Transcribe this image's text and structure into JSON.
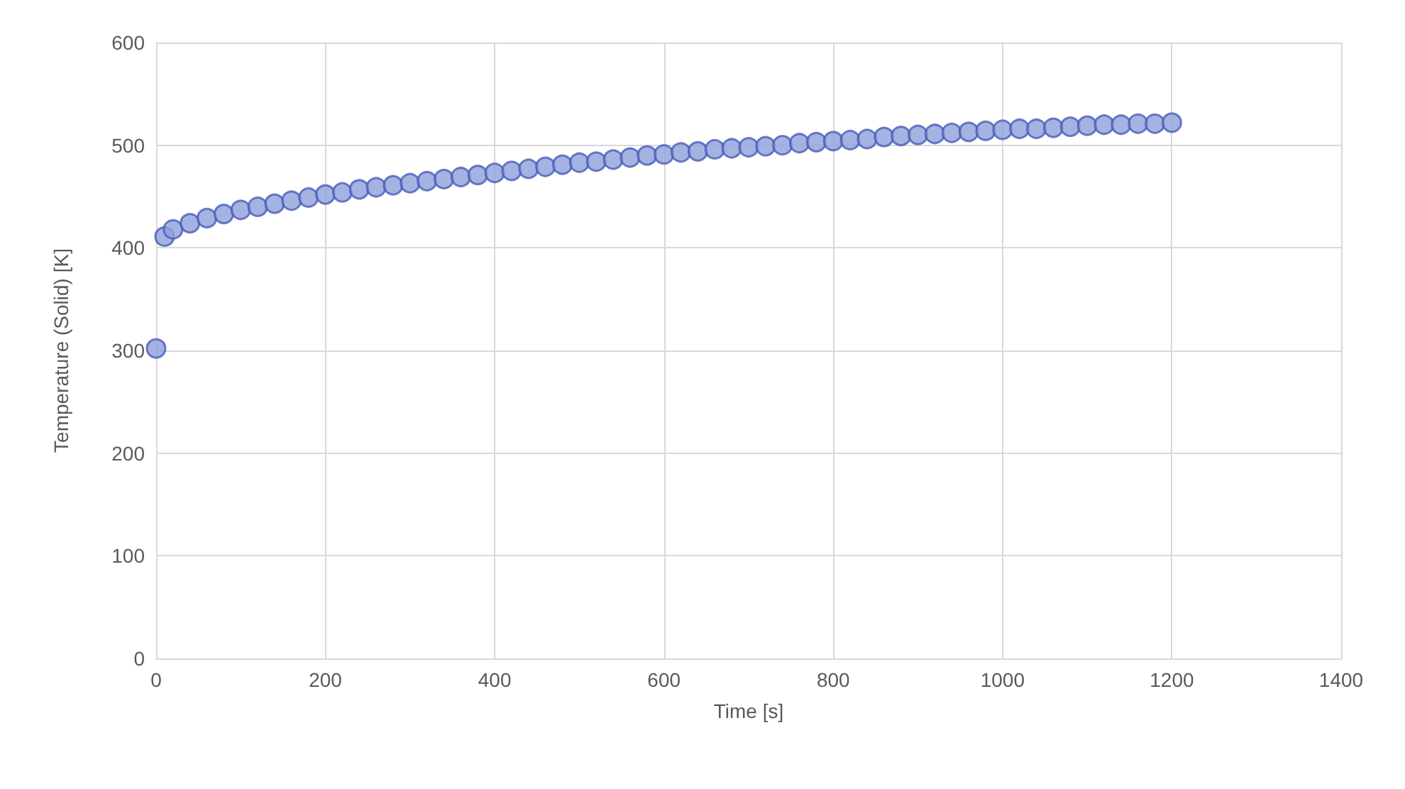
{
  "chart_data": {
    "type": "scatter",
    "xlabel": "Time [s]",
    "ylabel": "Temperature (Solid) [K]",
    "x": [
      0,
      10,
      20,
      40,
      60,
      80,
      100,
      120,
      140,
      160,
      180,
      200,
      220,
      240,
      260,
      280,
      300,
      320,
      340,
      360,
      380,
      400,
      420,
      440,
      460,
      480,
      500,
      520,
      540,
      560,
      580,
      600,
      620,
      640,
      660,
      680,
      700,
      720,
      740,
      760,
      780,
      800,
      820,
      840,
      860,
      880,
      900,
      920,
      940,
      960,
      980,
      1000,
      1020,
      1040,
      1060,
      1080,
      1100,
      1120,
      1140,
      1160,
      1180,
      1200
    ],
    "series": [
      {
        "color": "#8ea0dc",
        "values": [
          302,
          411,
          418,
          424,
          429,
          433,
          437,
          440,
          443,
          446,
          449,
          452,
          454,
          457,
          459,
          461,
          463,
          465,
          467,
          469,
          471,
          473,
          475,
          477,
          479,
          481,
          483,
          484,
          486,
          488,
          490,
          491,
          493,
          494,
          496,
          497,
          498,
          499,
          500,
          502,
          503,
          504,
          505,
          506,
          508,
          509,
          510,
          511,
          512,
          513,
          514,
          515,
          516,
          516,
          517,
          518,
          519,
          520,
          520,
          521,
          521,
          522
        ]
      }
    ],
    "xlim": [
      0,
      1400
    ],
    "xticks": [
      0,
      200,
      400,
      600,
      800,
      1000,
      1200,
      1400
    ],
    "ylim": [
      0,
      600
    ],
    "yticks": [
      0,
      100,
      200,
      300,
      400,
      500,
      600
    ],
    "grid": true,
    "marker": "circle"
  }
}
